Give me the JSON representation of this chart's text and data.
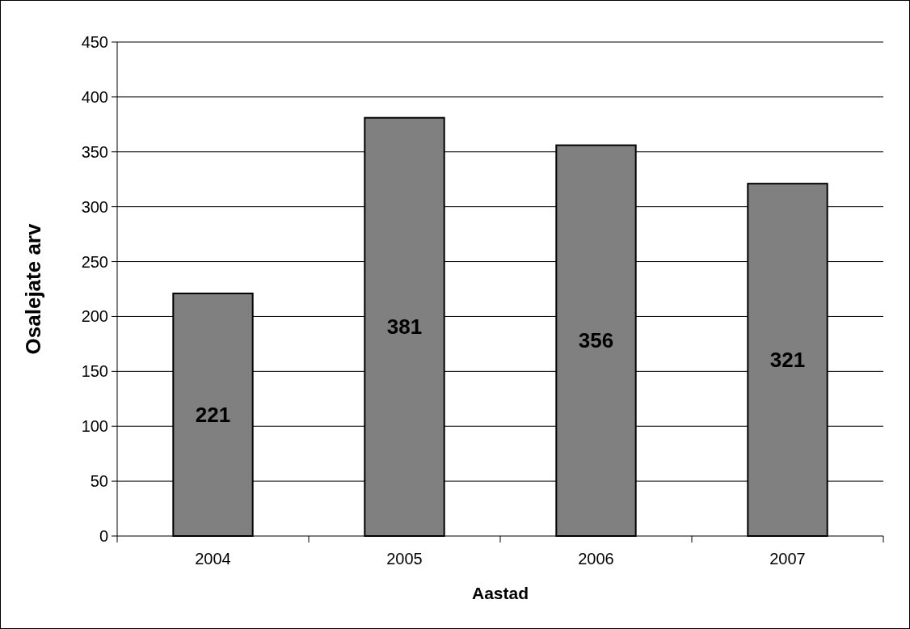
{
  "chart_data": {
    "type": "bar",
    "xlabel": "Aastad",
    "ylabel": "Osalejate arv",
    "categories": [
      "2004",
      "2005",
      "2006",
      "2007"
    ],
    "values": [
      221,
      381,
      356,
      321
    ],
    "color": "#808080",
    "ylim": [
      0,
      450
    ],
    "yticks": [
      0,
      50,
      100,
      150,
      200,
      250,
      300,
      350,
      400,
      450
    ],
    "grid": "y",
    "data_labels": true
  }
}
